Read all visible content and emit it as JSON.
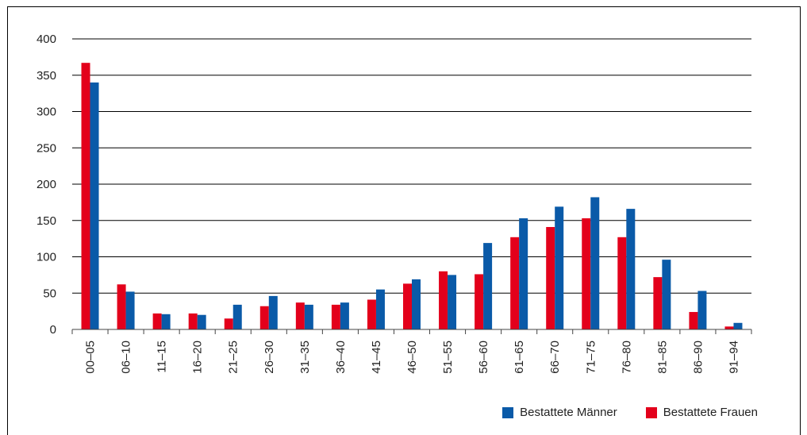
{
  "chart_data": {
    "type": "bar",
    "categories": [
      "00–05",
      "06–10",
      "11–15",
      "16–20",
      "21–25",
      "26–30",
      "31–35",
      "36–40",
      "41–45",
      "46–50",
      "51–55",
      "56–60",
      "61–65",
      "66–70",
      "71–75",
      "76–80",
      "81–85",
      "86–90",
      "91–94"
    ],
    "series": [
      {
        "name": "Bestattete Frauen",
        "color": "#e3001b",
        "values": [
          367,
          62,
          22,
          22,
          15,
          32,
          37,
          34,
          41,
          63,
          80,
          76,
          127,
          141,
          153,
          127,
          72,
          24,
          4
        ]
      },
      {
        "name": "Bestattete Männer",
        "color": "#0a5aa8",
        "values": [
          340,
          52,
          21,
          20,
          34,
          46,
          34,
          37,
          55,
          69,
          75,
          119,
          153,
          169,
          182,
          166,
          96,
          53,
          9
        ]
      }
    ],
    "yticks": [
      0,
      50,
      100,
      150,
      200,
      250,
      300,
      350,
      400
    ],
    "ylim": [
      0,
      400
    ],
    "grid": true,
    "legend_position": "bottom-right"
  },
  "legend": {
    "male_label": "Bestattete Männer",
    "female_label": "Bestattete Frauen",
    "male_color": "#0a5aa8",
    "female_color": "#e3001b"
  }
}
